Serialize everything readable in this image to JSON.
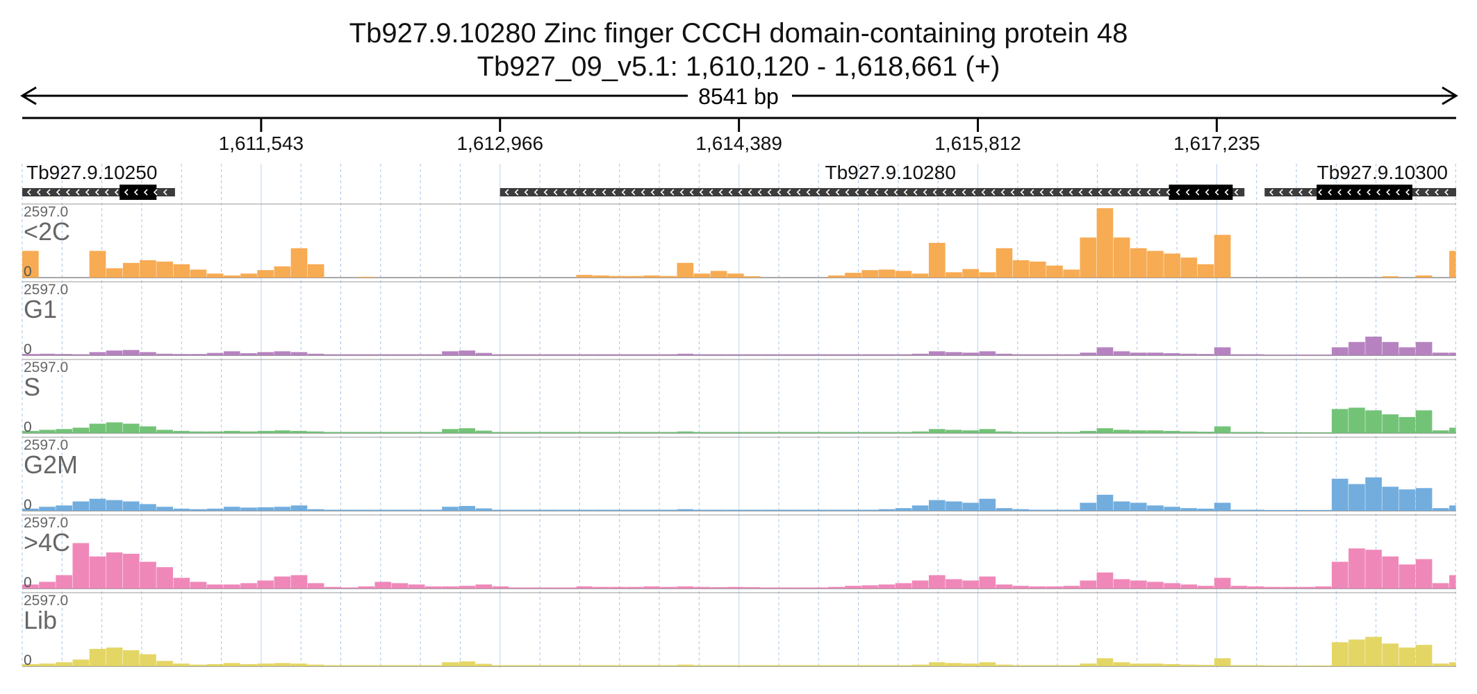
{
  "title": {
    "line1": "Tb927.9.10280  Zinc finger CCCH domain-containing protein 48",
    "line2": "Tb927_09_v5.1: 1,610,120 - 1,618,661 (+)",
    "span_label": "8541 bp"
  },
  "colors": {
    "<2C": "#f7a64a",
    "G1": "#b27cbd",
    "S": "#6cc070",
    "G2M": "#6aa9dc",
    ">4C": "#ee82b5",
    "Lib": "#e3d45d",
    "gene_bar": "#3c3c3c",
    "cds": "#000000",
    "grid": "#8fb6e0"
  },
  "chart_data": {
    "type": "area",
    "x_range": [
      1610120,
      1618661
    ],
    "x_ticks": [
      1611543,
      1612966,
      1614389,
      1615812,
      1617235
    ],
    "x_tick_labels": [
      "1,611,543",
      "1,612,966",
      "1,614,389",
      "1,615,812",
      "1,617,235"
    ],
    "ylim": [
      0,
      2597.0
    ],
    "ymax_label": "2597.0",
    "ymin_label": "0",
    "genes": [
      {
        "name": "Tb927.9.10250",
        "start": 1610120,
        "end": 1611030,
        "cds_start": 1610700,
        "cds_end": 1610920,
        "strand": "-"
      },
      {
        "name": "Tb927.9.10280",
        "start": 1612966,
        "end": 1617400,
        "cds_start": 1616950,
        "cds_end": 1617330,
        "strand": "-"
      },
      {
        "name": "Tb927.9.10300",
        "start": 1617520,
        "end": 1618661,
        "cds_start": 1617830,
        "cds_end": 1618400,
        "strand": "-"
      }
    ],
    "x": [
      1610120,
      1610220,
      1610320,
      1610420,
      1610520,
      1610620,
      1610720,
      1610820,
      1610920,
      1611020,
      1611120,
      1611220,
      1611320,
      1611420,
      1611520,
      1611620,
      1611720,
      1611820,
      1611920,
      1612020,
      1612120,
      1612220,
      1612320,
      1612420,
      1612520,
      1612620,
      1612720,
      1612820,
      1612920,
      1613020,
      1613120,
      1613220,
      1613320,
      1613420,
      1613520,
      1613620,
      1613720,
      1613820,
      1613920,
      1614020,
      1614120,
      1614220,
      1614320,
      1614420,
      1614520,
      1614620,
      1614720,
      1614820,
      1614920,
      1615020,
      1615120,
      1615220,
      1615320,
      1615420,
      1615520,
      1615620,
      1615720,
      1615820,
      1615920,
      1616020,
      1616120,
      1616220,
      1616320,
      1616420,
      1616520,
      1616620,
      1616720,
      1616820,
      1616920,
      1617020,
      1617120,
      1617220,
      1617320,
      1617420,
      1617520,
      1617620,
      1617720,
      1617820,
      1617920,
      1618020,
      1618120,
      1618220,
      1618320,
      1618420,
      1618520,
      1618620
    ],
    "series": [
      {
        "name": "<2C",
        "values": [
          1000,
          0,
          0,
          0,
          1000,
          350,
          550,
          650,
          600,
          500,
          300,
          150,
          80,
          150,
          280,
          420,
          1100,
          500,
          0,
          0,
          30,
          0,
          0,
          0,
          0,
          0,
          0,
          0,
          0,
          0,
          0,
          0,
          0,
          100,
          80,
          60,
          60,
          80,
          60,
          550,
          150,
          250,
          150,
          50,
          0,
          0,
          0,
          0,
          80,
          180,
          280,
          300,
          250,
          150,
          1300,
          200,
          320,
          200,
          1100,
          650,
          600,
          450,
          300,
          1500,
          2597,
          1500,
          1100,
          1000,
          900,
          750,
          500,
          1600,
          0,
          0,
          0,
          0,
          0,
          0,
          0,
          0,
          0,
          50,
          0,
          80,
          0,
          1000
        ]
      },
      {
        "name": "G1",
        "values": [
          50,
          60,
          50,
          40,
          120,
          180,
          200,
          120,
          60,
          50,
          50,
          90,
          150,
          80,
          120,
          150,
          120,
          60,
          40,
          40,
          40,
          40,
          40,
          40,
          40,
          150,
          180,
          90,
          40,
          40,
          40,
          40,
          40,
          40,
          40,
          40,
          40,
          40,
          40,
          60,
          40,
          40,
          40,
          40,
          40,
          40,
          40,
          40,
          40,
          40,
          40,
          40,
          40,
          60,
          150,
          120,
          100,
          150,
          60,
          40,
          40,
          40,
          40,
          100,
          300,
          150,
          100,
          100,
          80,
          60,
          50,
          300,
          40,
          40,
          30,
          30,
          30,
          30,
          300,
          500,
          700,
          500,
          300,
          500,
          100,
          100
        ]
      },
      {
        "name": "S",
        "values": [
          80,
          120,
          150,
          200,
          350,
          400,
          350,
          250,
          120,
          80,
          60,
          60,
          80,
          60,
          80,
          100,
          80,
          60,
          40,
          40,
          40,
          40,
          40,
          40,
          40,
          150,
          180,
          90,
          40,
          40,
          40,
          40,
          40,
          40,
          40,
          40,
          40,
          40,
          40,
          60,
          40,
          40,
          40,
          40,
          40,
          40,
          40,
          40,
          40,
          40,
          40,
          40,
          40,
          60,
          150,
          120,
          100,
          150,
          60,
          40,
          40,
          40,
          40,
          80,
          180,
          120,
          100,
          100,
          80,
          60,
          50,
          250,
          40,
          40,
          30,
          30,
          30,
          30,
          900,
          950,
          850,
          700,
          600,
          850,
          100,
          200
        ]
      },
      {
        "name": "G2M",
        "values": [
          80,
          150,
          200,
          350,
          450,
          400,
          350,
          250,
          150,
          80,
          60,
          80,
          150,
          120,
          130,
          150,
          200,
          60,
          40,
          40,
          40,
          40,
          40,
          40,
          40,
          150,
          180,
          90,
          40,
          40,
          40,
          40,
          40,
          40,
          40,
          40,
          40,
          40,
          40,
          60,
          40,
          40,
          40,
          40,
          40,
          40,
          40,
          40,
          40,
          40,
          40,
          60,
          100,
          200,
          400,
          350,
          300,
          450,
          100,
          60,
          40,
          40,
          40,
          300,
          600,
          350,
          300,
          200,
          150,
          100,
          80,
          300,
          40,
          40,
          30,
          30,
          30,
          30,
          1200,
          1000,
          1250,
          900,
          800,
          850,
          100,
          200
        ]
      },
      {
        "name": ">4C",
        "values": [
          150,
          250,
          500,
          1700,
          1200,
          1350,
          1300,
          1000,
          800,
          400,
          250,
          150,
          150,
          200,
          300,
          450,
          500,
          200,
          60,
          40,
          80,
          250,
          200,
          150,
          80,
          80,
          100,
          150,
          80,
          40,
          40,
          40,
          40,
          80,
          60,
          60,
          60,
          80,
          60,
          80,
          60,
          50,
          60,
          50,
          40,
          40,
          40,
          40,
          60,
          100,
          120,
          150,
          200,
          300,
          500,
          350,
          300,
          450,
          150,
          100,
          80,
          80,
          100,
          300,
          600,
          350,
          300,
          250,
          200,
          150,
          100,
          400,
          100,
          80,
          60,
          60,
          60,
          80,
          1000,
          1500,
          1450,
          1200,
          900,
          1100,
          200,
          500
        ]
      },
      {
        "name": "Lib",
        "values": [
          80,
          100,
          150,
          250,
          650,
          700,
          600,
          450,
          200,
          100,
          60,
          80,
          120,
          80,
          100,
          120,
          100,
          60,
          40,
          40,
          40,
          40,
          40,
          40,
          40,
          150,
          180,
          90,
          40,
          40,
          40,
          40,
          40,
          40,
          40,
          40,
          40,
          40,
          40,
          60,
          40,
          40,
          40,
          40,
          40,
          40,
          40,
          40,
          40,
          40,
          40,
          40,
          40,
          60,
          150,
          120,
          100,
          150,
          60,
          40,
          40,
          40,
          40,
          100,
          300,
          150,
          100,
          100,
          80,
          60,
          50,
          300,
          40,
          40,
          30,
          30,
          30,
          30,
          900,
          1000,
          1100,
          850,
          700,
          800,
          100,
          150
        ]
      }
    ]
  }
}
